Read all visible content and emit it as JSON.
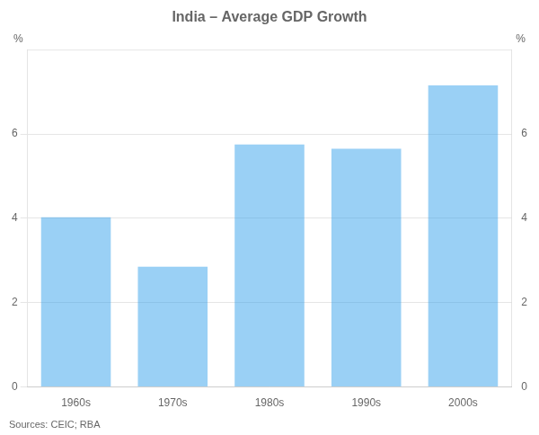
{
  "chart_data": {
    "type": "bar",
    "title": "India – Average GDP Growth",
    "categories": [
      "1960s",
      "1970s",
      "1980s",
      "1990s",
      "2000s"
    ],
    "values": [
      4.02,
      2.85,
      5.75,
      5.65,
      7.15
    ],
    "ylim": [
      0,
      8
    ],
    "yticks": [
      0,
      2,
      4,
      6
    ],
    "ylabel": "%",
    "y2lim": [
      0,
      8
    ],
    "y2ticks": [
      0,
      2,
      4,
      6
    ],
    "y2label": "%",
    "grid": true,
    "source": "Sources: CEIC; RBA"
  }
}
